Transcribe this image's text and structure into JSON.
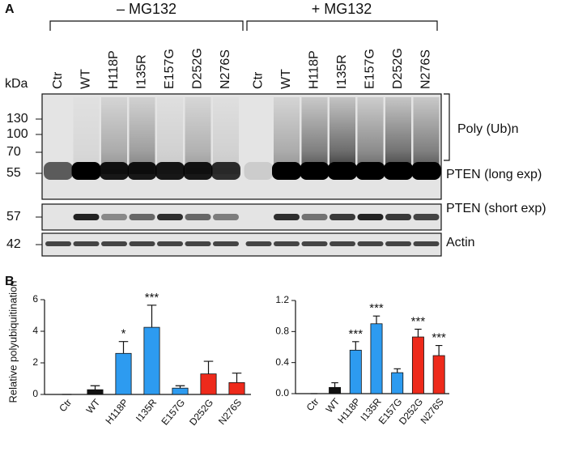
{
  "panel_a": {
    "label": "A",
    "groups": [
      "– MG132",
      "+ MG132"
    ],
    "lanes": [
      "Ctr",
      "WT",
      "H118P",
      "I135R",
      "E157G",
      "D252G",
      "N276S",
      "Ctr",
      "WT",
      "H118P",
      "I135R",
      "E157G",
      "D252G",
      "N276S"
    ],
    "marker_unit": "kDa",
    "markers": [
      130,
      100,
      70,
      55,
      57,
      42
    ],
    "blot_labels": [
      "Poly (Ub)n",
      "PTEN (long exp)",
      "PTEN (short exp)",
      "Actin"
    ]
  },
  "panel_b": {
    "label": "B"
  },
  "chart_data": [
    {
      "type": "bar",
      "ylabel": "Relative polyubiquitination",
      "categories": [
        "Ctr",
        "WT",
        "H118P",
        "I135R",
        "E157G",
        "D252G",
        "N276S"
      ],
      "values": [
        0,
        0.3,
        2.6,
        4.25,
        0.4,
        1.3,
        0.75
      ],
      "errors": [
        0,
        0.25,
        0.75,
        1.4,
        0.15,
        0.8,
        0.6
      ],
      "colors": [
        "#111111",
        "#111111",
        "#2d9bf0",
        "#2d9bf0",
        "#2d9bf0",
        "#ee2a1b",
        "#ee2a1b"
      ],
      "annotations": [
        null,
        null,
        "*",
        "***",
        null,
        null,
        null
      ],
      "ylim": [
        0,
        6
      ],
      "yticks": [
        0,
        2,
        4,
        6
      ]
    },
    {
      "type": "bar",
      "categories": [
        "Ctr",
        "WT",
        "H118P",
        "I135R",
        "E157G",
        "D252G",
        "N276S"
      ],
      "values": [
        0,
        0.08,
        0.56,
        0.9,
        0.27,
        0.73,
        0.49
      ],
      "errors": [
        0,
        0.06,
        0.11,
        0.1,
        0.05,
        0.1,
        0.13
      ],
      "colors": [
        "#111111",
        "#111111",
        "#2d9bf0",
        "#2d9bf0",
        "#2d9bf0",
        "#ee2a1b",
        "#ee2a1b"
      ],
      "annotations": [
        null,
        null,
        "***",
        "***",
        null,
        "***",
        "***"
      ],
      "ylim": [
        0,
        1.2
      ],
      "yticks": [
        {
          "value": 0,
          "label": "0.0"
        },
        0.4,
        0.8,
        1.2
      ]
    }
  ]
}
